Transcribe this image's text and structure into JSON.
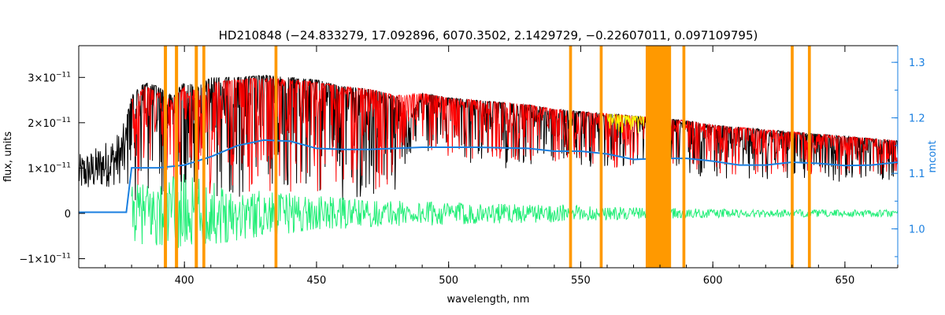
{
  "chart_data": {
    "type": "line",
    "title": "HD210848    (−24.833279, 17.092896, 6070.3502, 2.1429729, −0.22607011, 0.097109795)",
    "xlabel": "wavelength, nm",
    "ylabel": "flux, units",
    "y2label": "mcont",
    "xlim": [
      360,
      670
    ],
    "ylim": [
      -1.2e-11,
      3.7e-11
    ],
    "y2lim": [
      0.93,
      1.33
    ],
    "x_ticks": [
      400,
      450,
      500,
      550,
      600,
      650
    ],
    "y_ticks": [
      {
        "value": -1e-11,
        "label": "−1×10"
      },
      {
        "value": 0,
        "label": "0"
      },
      {
        "value": 1e-11,
        "label": "1×10"
      },
      {
        "value": 2e-11,
        "label": "2×10"
      },
      {
        "value": 3e-11,
        "label": "3×10"
      }
    ],
    "y_tick_exponent": "−11",
    "y2_ticks": [
      1.0,
      1.1,
      1.2,
      1.3
    ],
    "grid": false,
    "masked_regions": [
      [
        392.2,
        393.4
      ],
      [
        396.4,
        397.6
      ],
      [
        403.9,
        405.1
      ],
      [
        406.8,
        407.9
      ],
      [
        434.1,
        435.2
      ],
      [
        545.6,
        546.7
      ],
      [
        557.2,
        558.3
      ],
      [
        574.6,
        584.2
      ],
      [
        588.5,
        589.6
      ],
      [
        629.5,
        630.6
      ],
      [
        636.0,
        637.1
      ]
    ],
    "series": [
      {
        "role": "observed",
        "color": "#000000",
        "x": [
          360,
          365,
          370,
          375,
          378,
          380,
          385,
          390,
          395,
          400,
          405,
          410,
          420,
          430,
          440,
          450,
          460,
          470,
          480,
          486,
          490,
          500,
          510,
          520,
          530,
          540,
          550,
          560,
          570,
          580,
          590,
          600,
          610,
          620,
          630,
          640,
          650,
          660,
          670
        ],
        "y": [
          1.3e-11,
          1.4e-11,
          1.6e-11,
          1.8e-11,
          2.1e-11,
          2.6e-11,
          2.9e-11,
          2.8e-11,
          2.6e-11,
          2.9e-11,
          2.8e-11,
          3e-11,
          3e-11,
          3.05e-11,
          3e-11,
          2.95e-11,
          2.8e-11,
          2.75e-11,
          2.6e-11,
          2.2e-11,
          2.65e-11,
          2.55e-11,
          2.5e-11,
          2.45e-11,
          2.4e-11,
          2.3e-11,
          2.25e-11,
          2.2e-11,
          2.15e-11,
          2.1e-11,
          2.05e-11,
          1.95e-11,
          1.9e-11,
          1.85e-11,
          1.8e-11,
          1.75e-11,
          1.7e-11,
          1.65e-11,
          1.6e-11
        ]
      },
      {
        "role": "model",
        "color": "#ff0000",
        "x": [
          380,
          385,
          390,
          395,
          400,
          405,
          410,
          420,
          430,
          440,
          450,
          460,
          470,
          480,
          490,
          500,
          510,
          520,
          530,
          540,
          550,
          560,
          570,
          580,
          590,
          600,
          610,
          620,
          630,
          640,
          650,
          660,
          670
        ],
        "y": [
          2.5e-11,
          2.8e-11,
          2.7e-11,
          2.5e-11,
          2.8e-11,
          2.7e-11,
          2.9e-11,
          2.95e-11,
          3e-11,
          2.95e-11,
          2.9e-11,
          2.8e-11,
          2.75e-11,
          2.6e-11,
          2.65e-11,
          2.55e-11,
          2.5e-11,
          2.45e-11,
          2.4e-11,
          2.3e-11,
          2.25e-11,
          2.2e-11,
          2.15e-11,
          2.1e-11,
          2.05e-11,
          1.95e-11,
          1.9e-11,
          1.85e-11,
          1.8e-11,
          1.75e-11,
          1.7e-11,
          1.65e-11,
          1.6e-11
        ]
      },
      {
        "role": "continuum",
        "color": "#1a7fe0",
        "axis": "right",
        "x": [
          360,
          378,
          380,
          390,
          400,
          410,
          420,
          430,
          440,
          450,
          460,
          470,
          480,
          490,
          500,
          510,
          520,
          530,
          540,
          550,
          560,
          570,
          580,
          590,
          600,
          610,
          620,
          630,
          640,
          650,
          660,
          670
        ],
        "y": [
          1.03,
          1.03,
          1.11,
          1.11,
          1.115,
          1.13,
          1.15,
          1.16,
          1.158,
          1.145,
          1.143,
          1.143,
          1.145,
          1.147,
          1.147,
          1.147,
          1.146,
          1.145,
          1.14,
          1.14,
          1.135,
          1.125,
          1.127,
          1.127,
          1.122,
          1.115,
          1.115,
          1.12,
          1.118,
          1.114,
          1.115,
          1.12
        ]
      },
      {
        "role": "residuals",
        "color": "#22ee77",
        "x": [
          380,
          390,
          400,
          410,
          420,
          430,
          440,
          450,
          460,
          470,
          480,
          490,
          500,
          520,
          540,
          560,
          580,
          600,
          620,
          640,
          660,
          670
        ],
        "y_amplitude": [
          6e-12,
          8e-12,
          9e-12,
          7e-12,
          6e-12,
          5e-12,
          4.5e-12,
          4e-12,
          3.5e-12,
          3e-12,
          3e-12,
          2.8e-12,
          2.5e-12,
          2.2e-12,
          2e-12,
          1.5e-12,
          1.2e-12,
          1e-12,
          9e-13,
          8e-13,
          8e-13,
          8e-13
        ]
      }
    ],
    "mask_color": "#ff9900",
    "highlight_color": "#ffff00"
  }
}
